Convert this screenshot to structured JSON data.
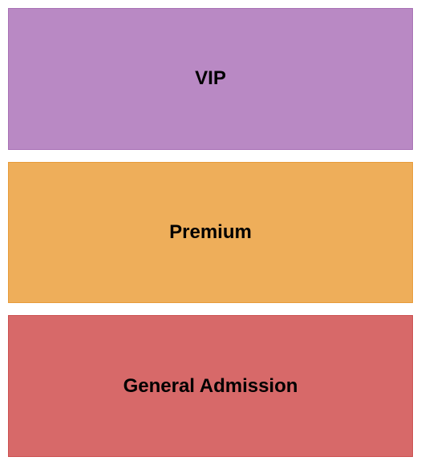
{
  "seating_chart": {
    "type": "infographic",
    "background_color": "#ffffff",
    "gap": 15,
    "padding": 10,
    "sections": [
      {
        "label": "VIP",
        "background_color": "#b989c4",
        "border_color": "#a871b5",
        "font_size": 24,
        "font_weight": "bold"
      },
      {
        "label": "Premium",
        "background_color": "#eeae5a",
        "border_color": "#e89b3a",
        "font_size": 24,
        "font_weight": "bold"
      },
      {
        "label": "General Admission",
        "background_color": "#d76969",
        "border_color": "#cc5050",
        "font_size": 24,
        "font_weight": "bold"
      }
    ]
  }
}
